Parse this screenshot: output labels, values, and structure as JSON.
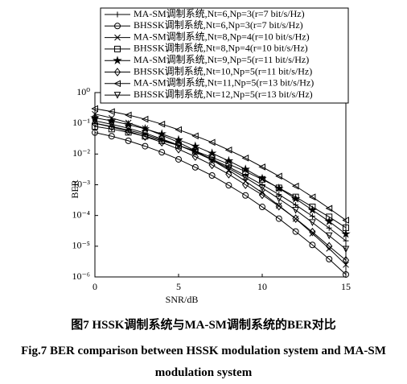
{
  "chart_data": {
    "type": "line",
    "y_scale": "log",
    "xlabel": "SNR/dB",
    "ylabel": "BER",
    "x": [
      0,
      1,
      2,
      3,
      4,
      5,
      6,
      7,
      8,
      9,
      10,
      11,
      12,
      13,
      14,
      15
    ],
    "xlim": [
      0,
      15
    ],
    "xticks": [
      0,
      5,
      10,
      15
    ],
    "ylim": [
      1e-06,
      1
    ],
    "yticks": [
      {
        "value": 1,
        "label": "10⁰"
      },
      {
        "value": 0.1,
        "label": "10⁻¹"
      },
      {
        "value": 0.01,
        "label": "10⁻²"
      },
      {
        "value": 0.001,
        "label": "10⁻³"
      },
      {
        "value": 0.0001,
        "label": "10⁻⁴"
      },
      {
        "value": 1e-05,
        "label": "10⁻⁵"
      },
      {
        "value": 1e-06,
        "label": "10⁻⁶"
      }
    ],
    "legend": "top",
    "series": [
      {
        "name": "MA-SM调制系统,Nt=6,Np=3(r=7 bit/s/Hz)",
        "color": "#000000",
        "marker": "plus",
        "values": [
          0.1,
          0.079,
          0.06,
          0.043,
          0.029,
          0.019,
          0.0117,
          0.0068,
          0.0038,
          0.002,
          0.001,
          0.00048,
          0.00022,
          9.5e-05,
          3.9e-05,
          1.5e-05
        ]
      },
      {
        "name": "BHSSK调制系统,Nt=6,Np=3(r=7 bit/s/Hz)",
        "color": "#000000",
        "marker": "circle",
        "values": [
          0.05,
          0.038,
          0.027,
          0.018,
          0.0114,
          0.0067,
          0.0037,
          0.002,
          0.00096,
          0.00045,
          0.00019,
          7.9e-05,
          3e-05,
          1.1e-05,
          3.8e-06,
          1.2e-06
        ]
      },
      {
        "name": "MA-SM调制系统,Nt=8,Np=4(r=10 bit/s/Hz)",
        "color": "#000000",
        "marker": "x",
        "values": [
          0.2,
          0.149,
          0.104,
          0.068,
          0.041,
          0.024,
          0.0127,
          0.0064,
          0.003,
          0.0013,
          0.00055,
          0.00021,
          7.8e-05,
          2.6e-05,
          8.4e-06,
          2.5e-06
        ]
      },
      {
        "name": "BHSSK调制系统,Nt=8,Np=4(r=10 bit/s/Hz)",
        "color": "#000000",
        "marker": "square",
        "values": [
          0.079,
          0.065,
          0.051,
          0.038,
          0.027,
          0.019,
          0.0124,
          0.0078,
          0.0047,
          0.0027,
          0.0015,
          0.00079,
          0.0004,
          0.00019,
          9e-05,
          4e-05
        ]
      },
      {
        "name": "MA-SM调制系统,Nt=9,Np=5(r=11 bit/s/Hz)",
        "color": "#000000",
        "marker": "star",
        "values": [
          0.151,
          0.12,
          0.091,
          0.066,
          0.045,
          0.029,
          0.018,
          0.0106,
          0.006,
          0.0032,
          0.0016,
          0.00077,
          0.00035,
          0.00015,
          6.4e-05,
          2.5e-05
        ]
      },
      {
        "name": "BHSSK调制系统,Nt=10,Np=5(r=11 bit/s/Hz)",
        "color": "#000000",
        "marker": "diamond",
        "values": [
          0.1,
          0.076,
          0.055,
          0.037,
          0.024,
          0.0144,
          0.0082,
          0.0044,
          0.0022,
          0.001,
          0.00047,
          0.0002,
          7.9e-05,
          2.9e-05,
          1e-05,
          3.5e-06
        ]
      },
      {
        "name": "MA-SM调制系统,Nt=11,Np=5(r=13 bit/s/Hz)",
        "color": "#000000",
        "marker": "triangle-left",
        "values": [
          0.3,
          0.24,
          0.186,
          0.136,
          0.094,
          0.062,
          0.039,
          0.024,
          0.0135,
          0.0074,
          0.0038,
          0.0019,
          0.0009,
          0.0004,
          0.00017,
          7e-05
        ]
      },
      {
        "name": "BHSSK调制系统,Nt=12,Np=5(r=13 bit/s/Hz)",
        "color": "#000000",
        "marker": "triangle-down",
        "values": [
          0.12,
          0.093,
          0.069,
          0.048,
          0.031,
          0.0195,
          0.0115,
          0.0064,
          0.0034,
          0.0017,
          0.00079,
          0.00035,
          0.00015,
          5.9e-05,
          2.2e-05,
          8e-06
        ]
      }
    ],
    "caption_zh": "图7 HSSK调制系统与MA-SM调制系统的BER对比",
    "caption_en": "Fig.7 BER comparison between HSSK modulation system and MA-SM modulation system"
  }
}
